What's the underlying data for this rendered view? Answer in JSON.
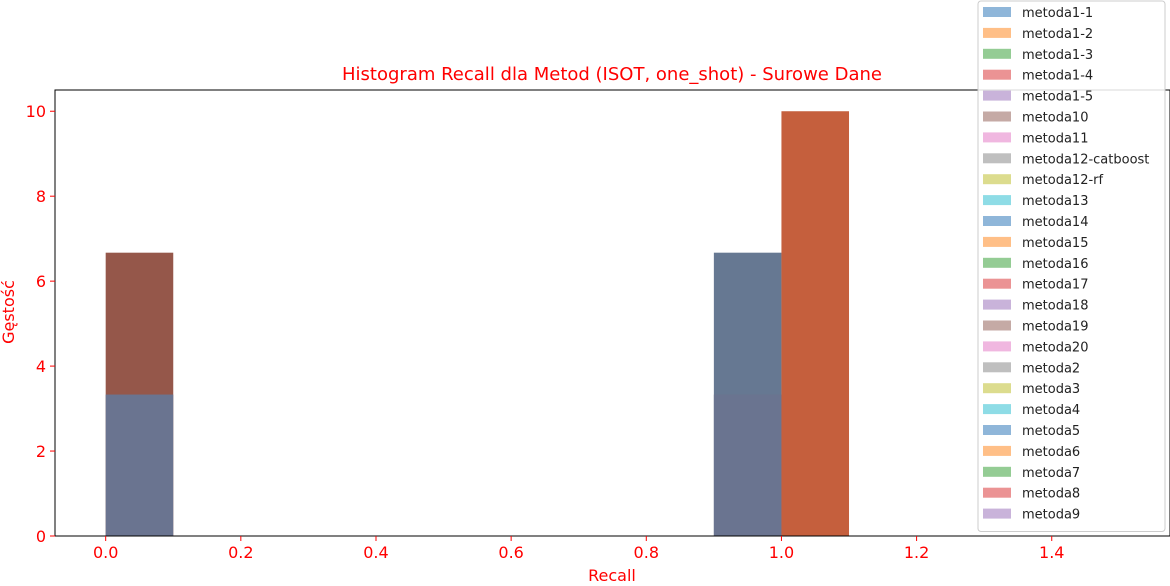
{
  "chart_data": {
    "type": "bar",
    "title": "Histogram Recall dla Metod (ISOT, one_shot) - Surowe Dane",
    "xlabel": "Recall",
    "ylabel": "Gęstość",
    "xlim": [
      -0.075,
      1.575
    ],
    "ylim": [
      0,
      10.5
    ],
    "xticks": [
      "0.0",
      "0.2",
      "0.4",
      "0.6",
      "0.8",
      "1.0",
      "1.2",
      "1.4"
    ],
    "yticks": [
      "0",
      "2",
      "4",
      "6",
      "8",
      "10"
    ],
    "grid": false,
    "legend_placement": "upper-right",
    "accent_color": "#ff0000",
    "bars": [
      {
        "x0": 0.0,
        "x1": 0.1,
        "top": 6.67,
        "color": "#95574a"
      },
      {
        "x0": 0.0,
        "x1": 0.1,
        "top": 3.33,
        "color": "#6a7490"
      },
      {
        "x0": 0.9,
        "x1": 1.0,
        "top": 6.67,
        "color": "#667892"
      },
      {
        "x0": 0.9,
        "x1": 1.0,
        "top": 3.33,
        "color": "#6a7490"
      },
      {
        "x0": 1.0,
        "x1": 1.1,
        "top": 10.0,
        "color": "#c55f3d"
      }
    ],
    "series": [
      {
        "name": "metoda1-1",
        "color": "#8fb6d9"
      },
      {
        "name": "metoda1-2",
        "color": "#ffbf87"
      },
      {
        "name": "metoda1-3",
        "color": "#94cc94"
      },
      {
        "name": "metoda1-4",
        "color": "#eb9394"
      },
      {
        "name": "metoda1-5",
        "color": "#c9b3da"
      },
      {
        "name": "metoda10",
        "color": "#c5aaa5"
      },
      {
        "name": "metoda11",
        "color": "#f0b7e0"
      },
      {
        "name": "metoda12-catboost",
        "color": "#bfbfbf"
      },
      {
        "name": "metoda12-rf",
        "color": "#dcdc8e"
      },
      {
        "name": "metoda13",
        "color": "#8edce6"
      },
      {
        "name": "metoda14",
        "color": "#8fb6d9"
      },
      {
        "name": "metoda15",
        "color": "#ffbf87"
      },
      {
        "name": "metoda16",
        "color": "#94cc94"
      },
      {
        "name": "metoda17",
        "color": "#eb9394"
      },
      {
        "name": "metoda18",
        "color": "#c9b3da"
      },
      {
        "name": "metoda19",
        "color": "#c5aaa5"
      },
      {
        "name": "metoda20",
        "color": "#f0b7e0"
      },
      {
        "name": "metoda2",
        "color": "#bfbfbf"
      },
      {
        "name": "metoda3",
        "color": "#dcdc8e"
      },
      {
        "name": "metoda4",
        "color": "#8edce6"
      },
      {
        "name": "metoda5",
        "color": "#8fb6d9"
      },
      {
        "name": "metoda6",
        "color": "#ffbf87"
      },
      {
        "name": "metoda7",
        "color": "#94cc94"
      },
      {
        "name": "metoda8",
        "color": "#eb9394"
      },
      {
        "name": "metoda9",
        "color": "#c9b3da"
      }
    ]
  }
}
